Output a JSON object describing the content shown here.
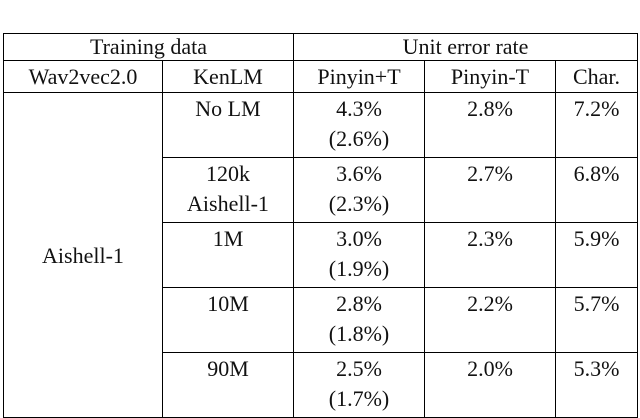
{
  "table": {
    "header": [
      [
        "Training data",
        "Unit error rate"
      ],
      [
        "Wav2vec2.0",
        "KenLM",
        "Pinyin+T",
        "Pinyin-T",
        "Char."
      ]
    ],
    "group": "Aishell-1",
    "rows": [
      [
        [
          "No LM"
        ],
        [
          "4.3%",
          "(2.6%)"
        ],
        [
          "2.8%"
        ],
        [
          "7.2%"
        ]
      ],
      [
        [
          "120k",
          "Aishell-1"
        ],
        [
          "3.6%",
          "(2.3%)"
        ],
        [
          "2.7%"
        ],
        [
          "6.8%"
        ]
      ],
      [
        [
          "1M"
        ],
        [
          "3.0%",
          "(1.9%)"
        ],
        [
          "2.3%"
        ],
        [
          "5.9%"
        ]
      ],
      [
        [
          "10M"
        ],
        [
          "2.8%",
          "(1.8%)"
        ],
        [
          "2.2%"
        ],
        [
          "5.7%"
        ]
      ],
      [
        [
          "90M"
        ],
        [
          "2.5%",
          "(1.7%)"
        ],
        [
          "2.0%"
        ],
        [
          "5.3%"
        ]
      ]
    ]
  }
}
